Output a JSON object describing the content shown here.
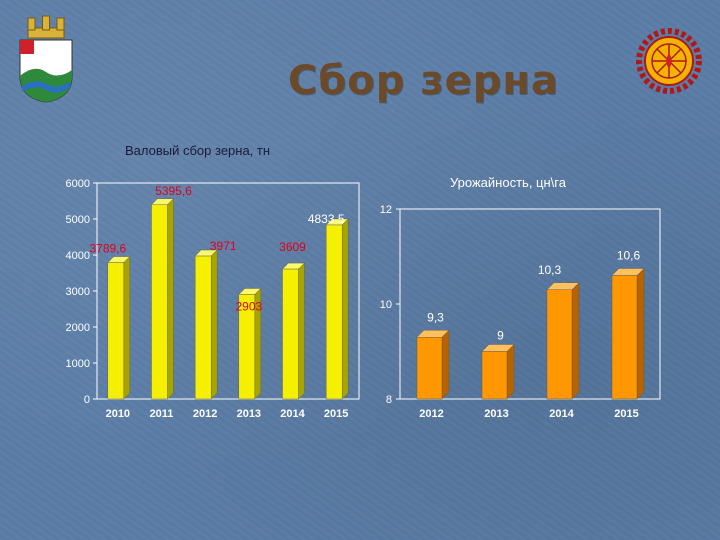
{
  "slide": {
    "title": "Сбор зерна"
  },
  "colors": {
    "yellow_face": "#f5f000",
    "yellow_side": "#a8a400",
    "yellow_top": "#fbf86a",
    "orange_face": "#ff9800",
    "orange_side": "#b86200",
    "orange_top": "#ffc060",
    "red_label": "#e0001a",
    "title_brown": "#6b4a2a"
  },
  "icons": {
    "left_logo": "coat-of-arms-icon",
    "right_logo": "sun-wheel-icon"
  },
  "chart_data": [
    {
      "type": "bar",
      "title": "Валовый сбор зерна, тн",
      "categories": [
        "2010",
        "2011",
        "2012",
        "2013",
        "2014",
        "2015"
      ],
      "values": [
        3789.6,
        5395.6,
        3971,
        2903,
        3609,
        4833.5
      ],
      "data_labels": [
        "3789,6",
        "5395,6",
        "3971",
        "2903",
        "3609",
        "4833,5"
      ],
      "yticks": [
        "0",
        "1000",
        "2000",
        "3000",
        "4000",
        "5000",
        "6000"
      ],
      "ylim": [
        0,
        6000
      ],
      "grid": false,
      "legend": "none"
    },
    {
      "type": "bar",
      "title": "Урожайность, цн\\га",
      "categories": [
        "2012",
        "2013",
        "2014",
        "2015"
      ],
      "values": [
        9.3,
        9,
        10.3,
        10.6
      ],
      "data_labels": [
        "9,3",
        "9",
        "10,3",
        "10,6"
      ],
      "yticks": [
        "8",
        "10",
        "12"
      ],
      "ylim": [
        8,
        12
      ],
      "grid": false,
      "legend": "none"
    }
  ]
}
